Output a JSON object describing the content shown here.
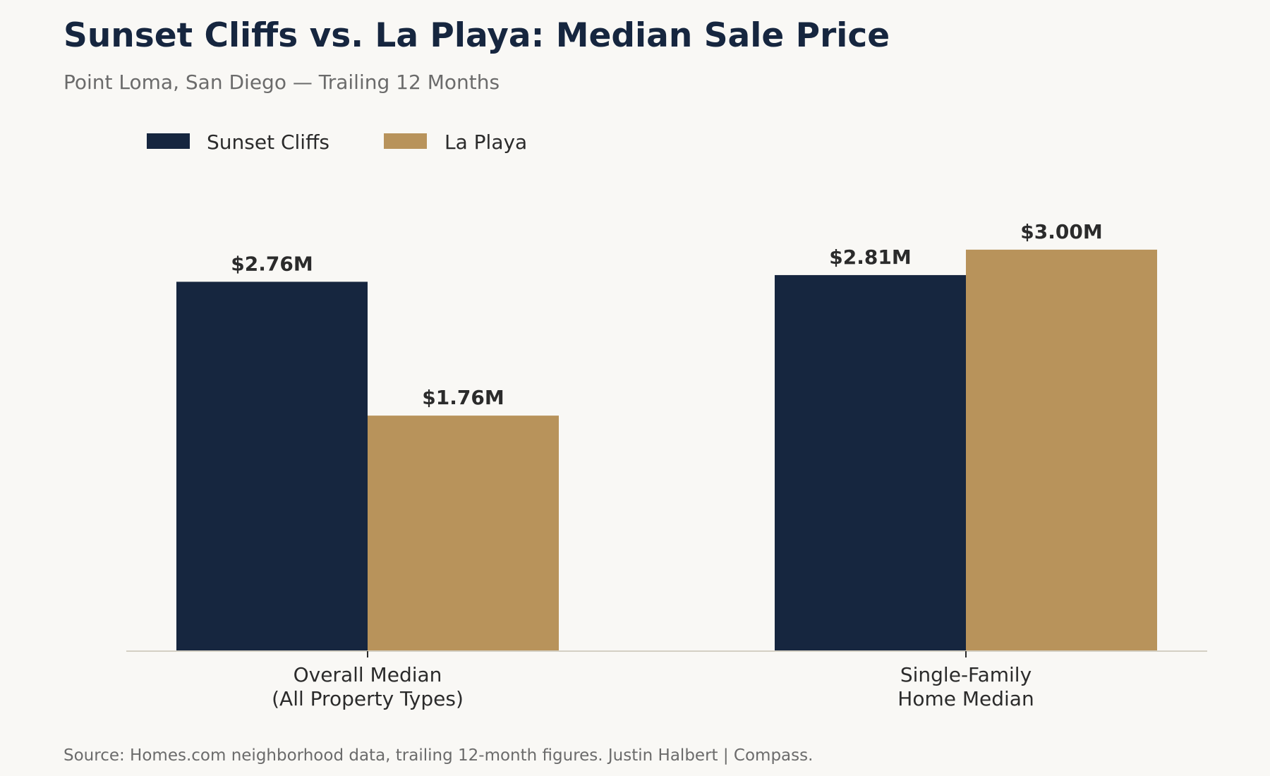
{
  "colors": {
    "background": "#f9f8f5",
    "title": "#16263f",
    "subtitle": "#6b6b6b",
    "label_text": "#2b2b2b",
    "axis_line": "#d4d0c4",
    "sunset_cliffs": "#16263f",
    "la_playa": "#b8935b"
  },
  "chart_data": {
    "type": "bar",
    "title": "Sunset Cliffs vs. La Playa: Median Sale Price",
    "subtitle": "Point Loma, San Diego — Trailing 12 Months",
    "categories": [
      [
        "Overall Median",
        "(All Property Types)"
      ],
      [
        "Single-Family",
        "Home Median"
      ]
    ],
    "series": [
      {
        "name": "Sunset Cliffs",
        "color": "#16263f",
        "values": [
          2.76,
          2.81
        ],
        "labels": [
          "$2.76M",
          "$2.81M"
        ]
      },
      {
        "name": "La Playa",
        "color": "#b8935b",
        "values": [
          1.76,
          3.0
        ],
        "labels": [
          "$1.76M",
          "$3.00M"
        ]
      }
    ],
    "unit": "$M",
    "ylim": [
      0,
      3.6
    ],
    "grid": false,
    "legend_position": "top-left",
    "source": "Source: Homes.com neighborhood data, trailing 12-month figures. Justin Halbert | Compass."
  }
}
